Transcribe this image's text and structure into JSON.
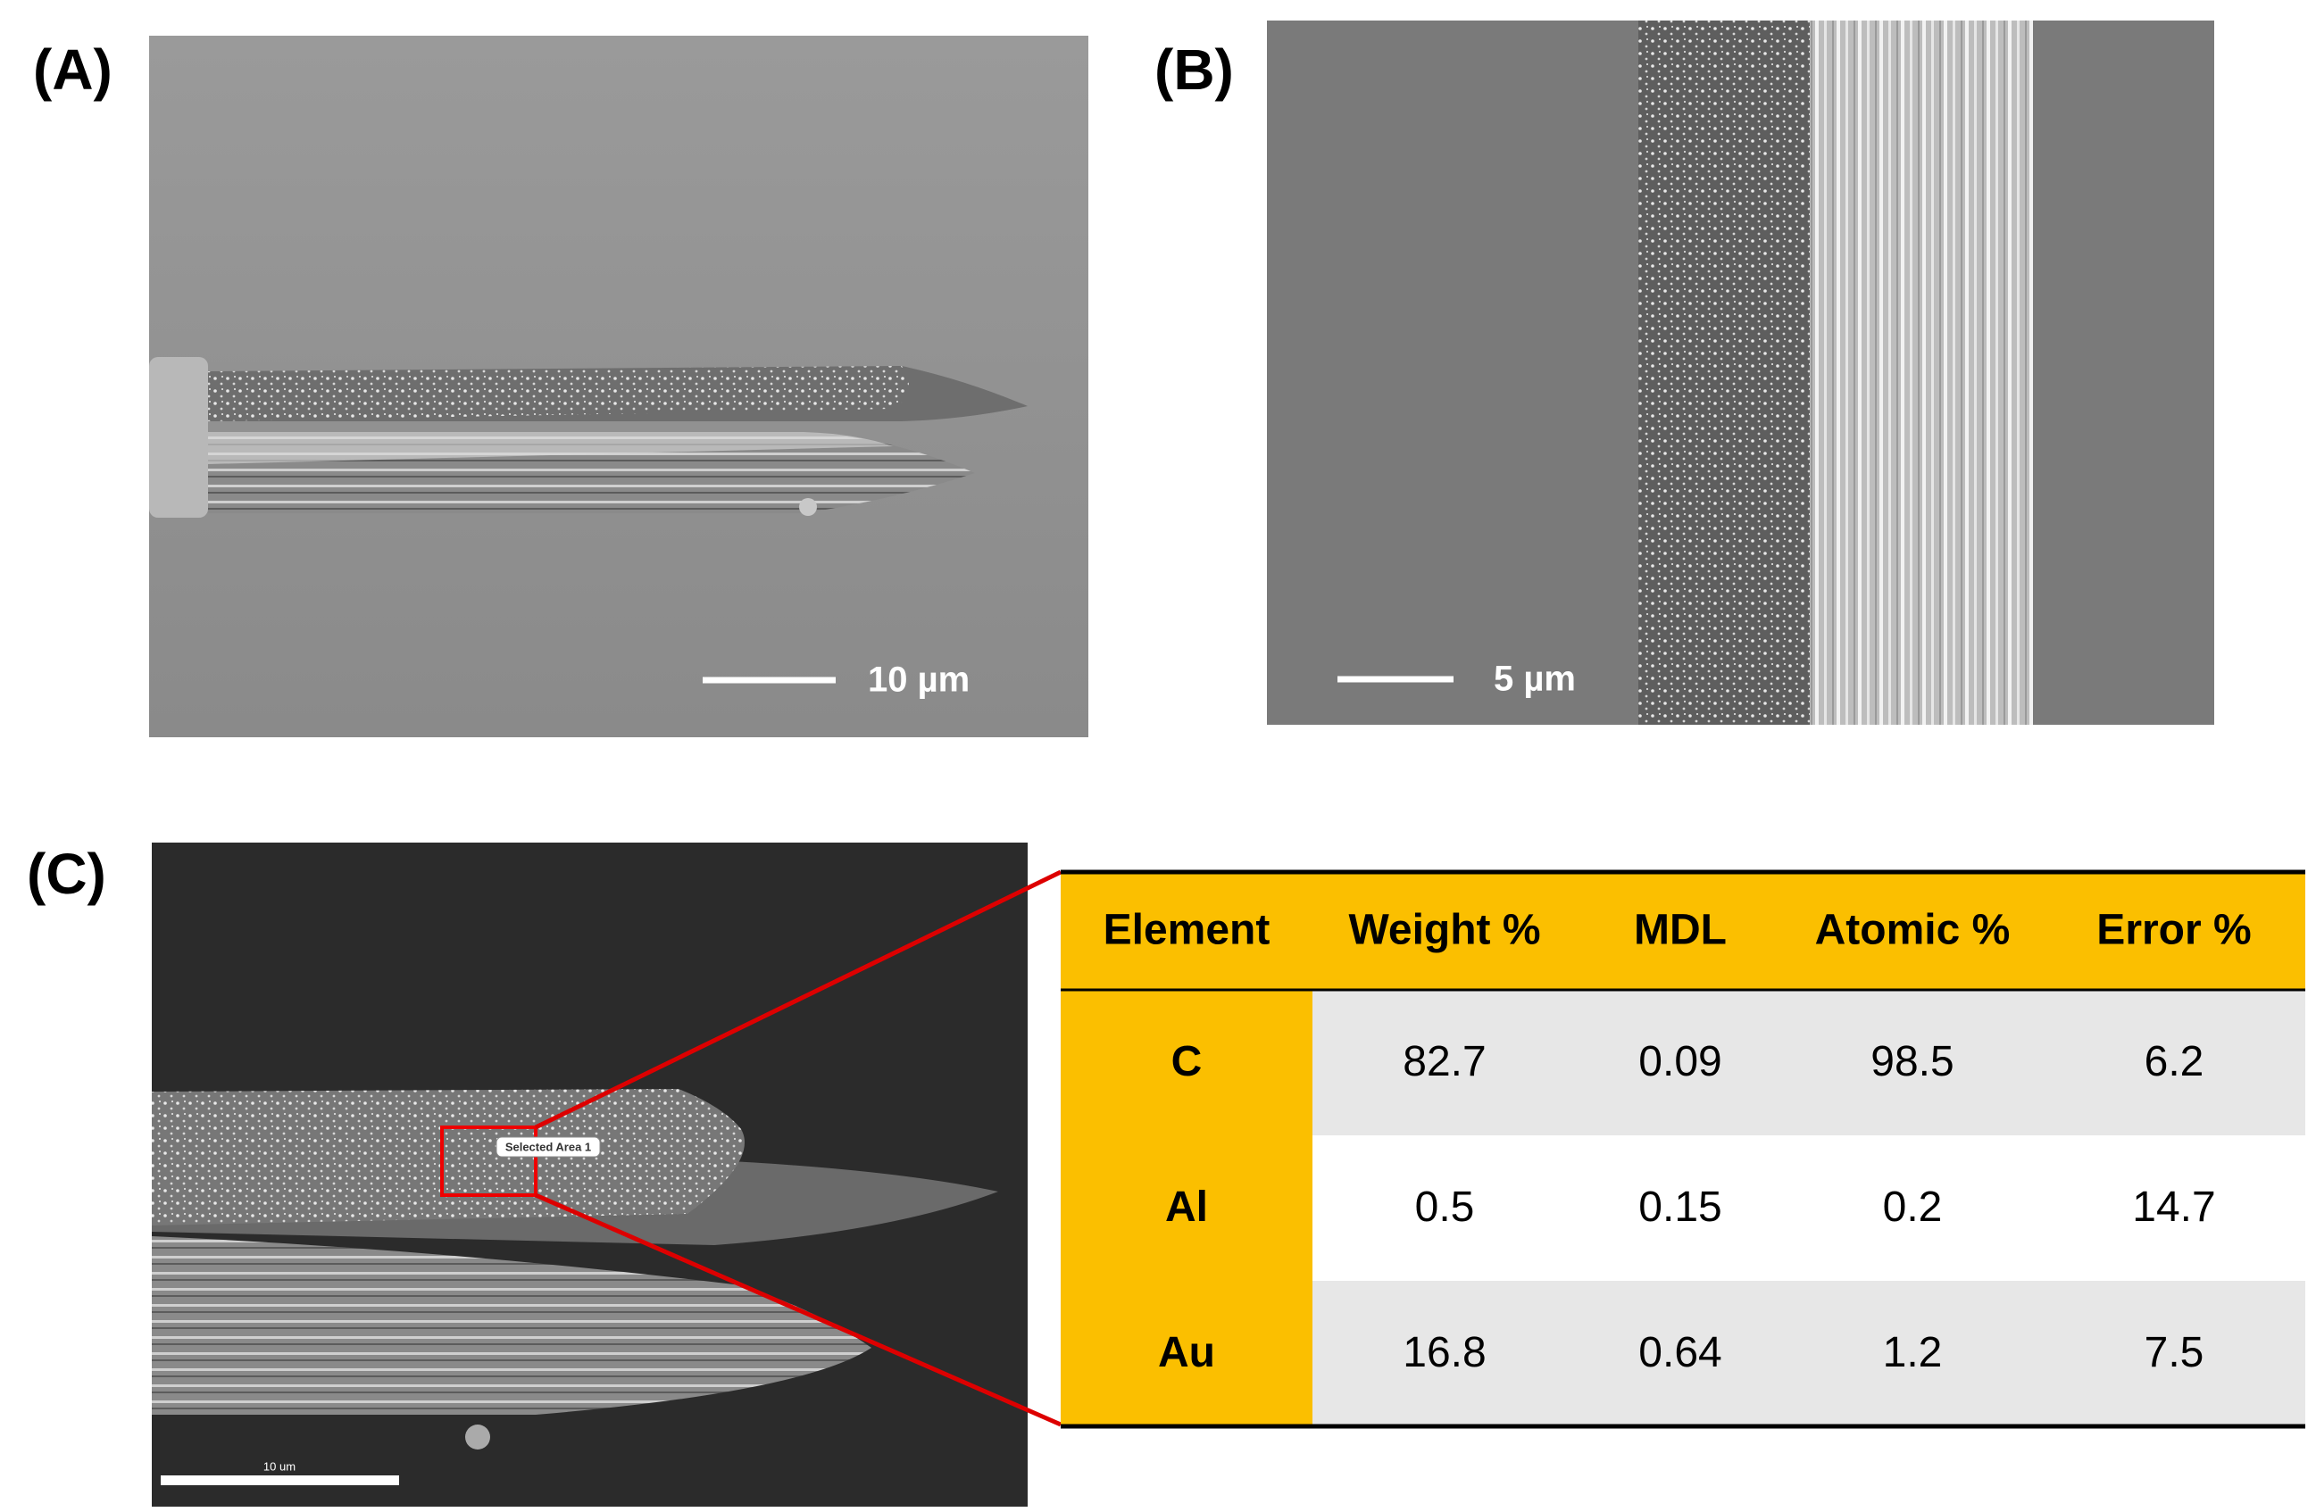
{
  "panels": [
    {
      "label": "(A)",
      "scale_bar": "10 µm"
    },
    {
      "label": "(B)",
      "scale_bar": "5 µm"
    },
    {
      "label": "(C)",
      "scale_bar": "10 um",
      "selection": "Selected Area 1"
    }
  ],
  "table": {
    "header": [
      "Element",
      "Weight %",
      "MDL",
      "Atomic %",
      "Error %"
    ],
    "rows": [
      [
        "C",
        "82.7",
        "0.09",
        "98.5",
        "6.2"
      ],
      [
        "Al",
        "0.5",
        "0.15",
        "0.2",
        "14.7"
      ],
      [
        "Au",
        "16.8",
        "0.64",
        "1.2",
        "7.5"
      ]
    ]
  }
}
